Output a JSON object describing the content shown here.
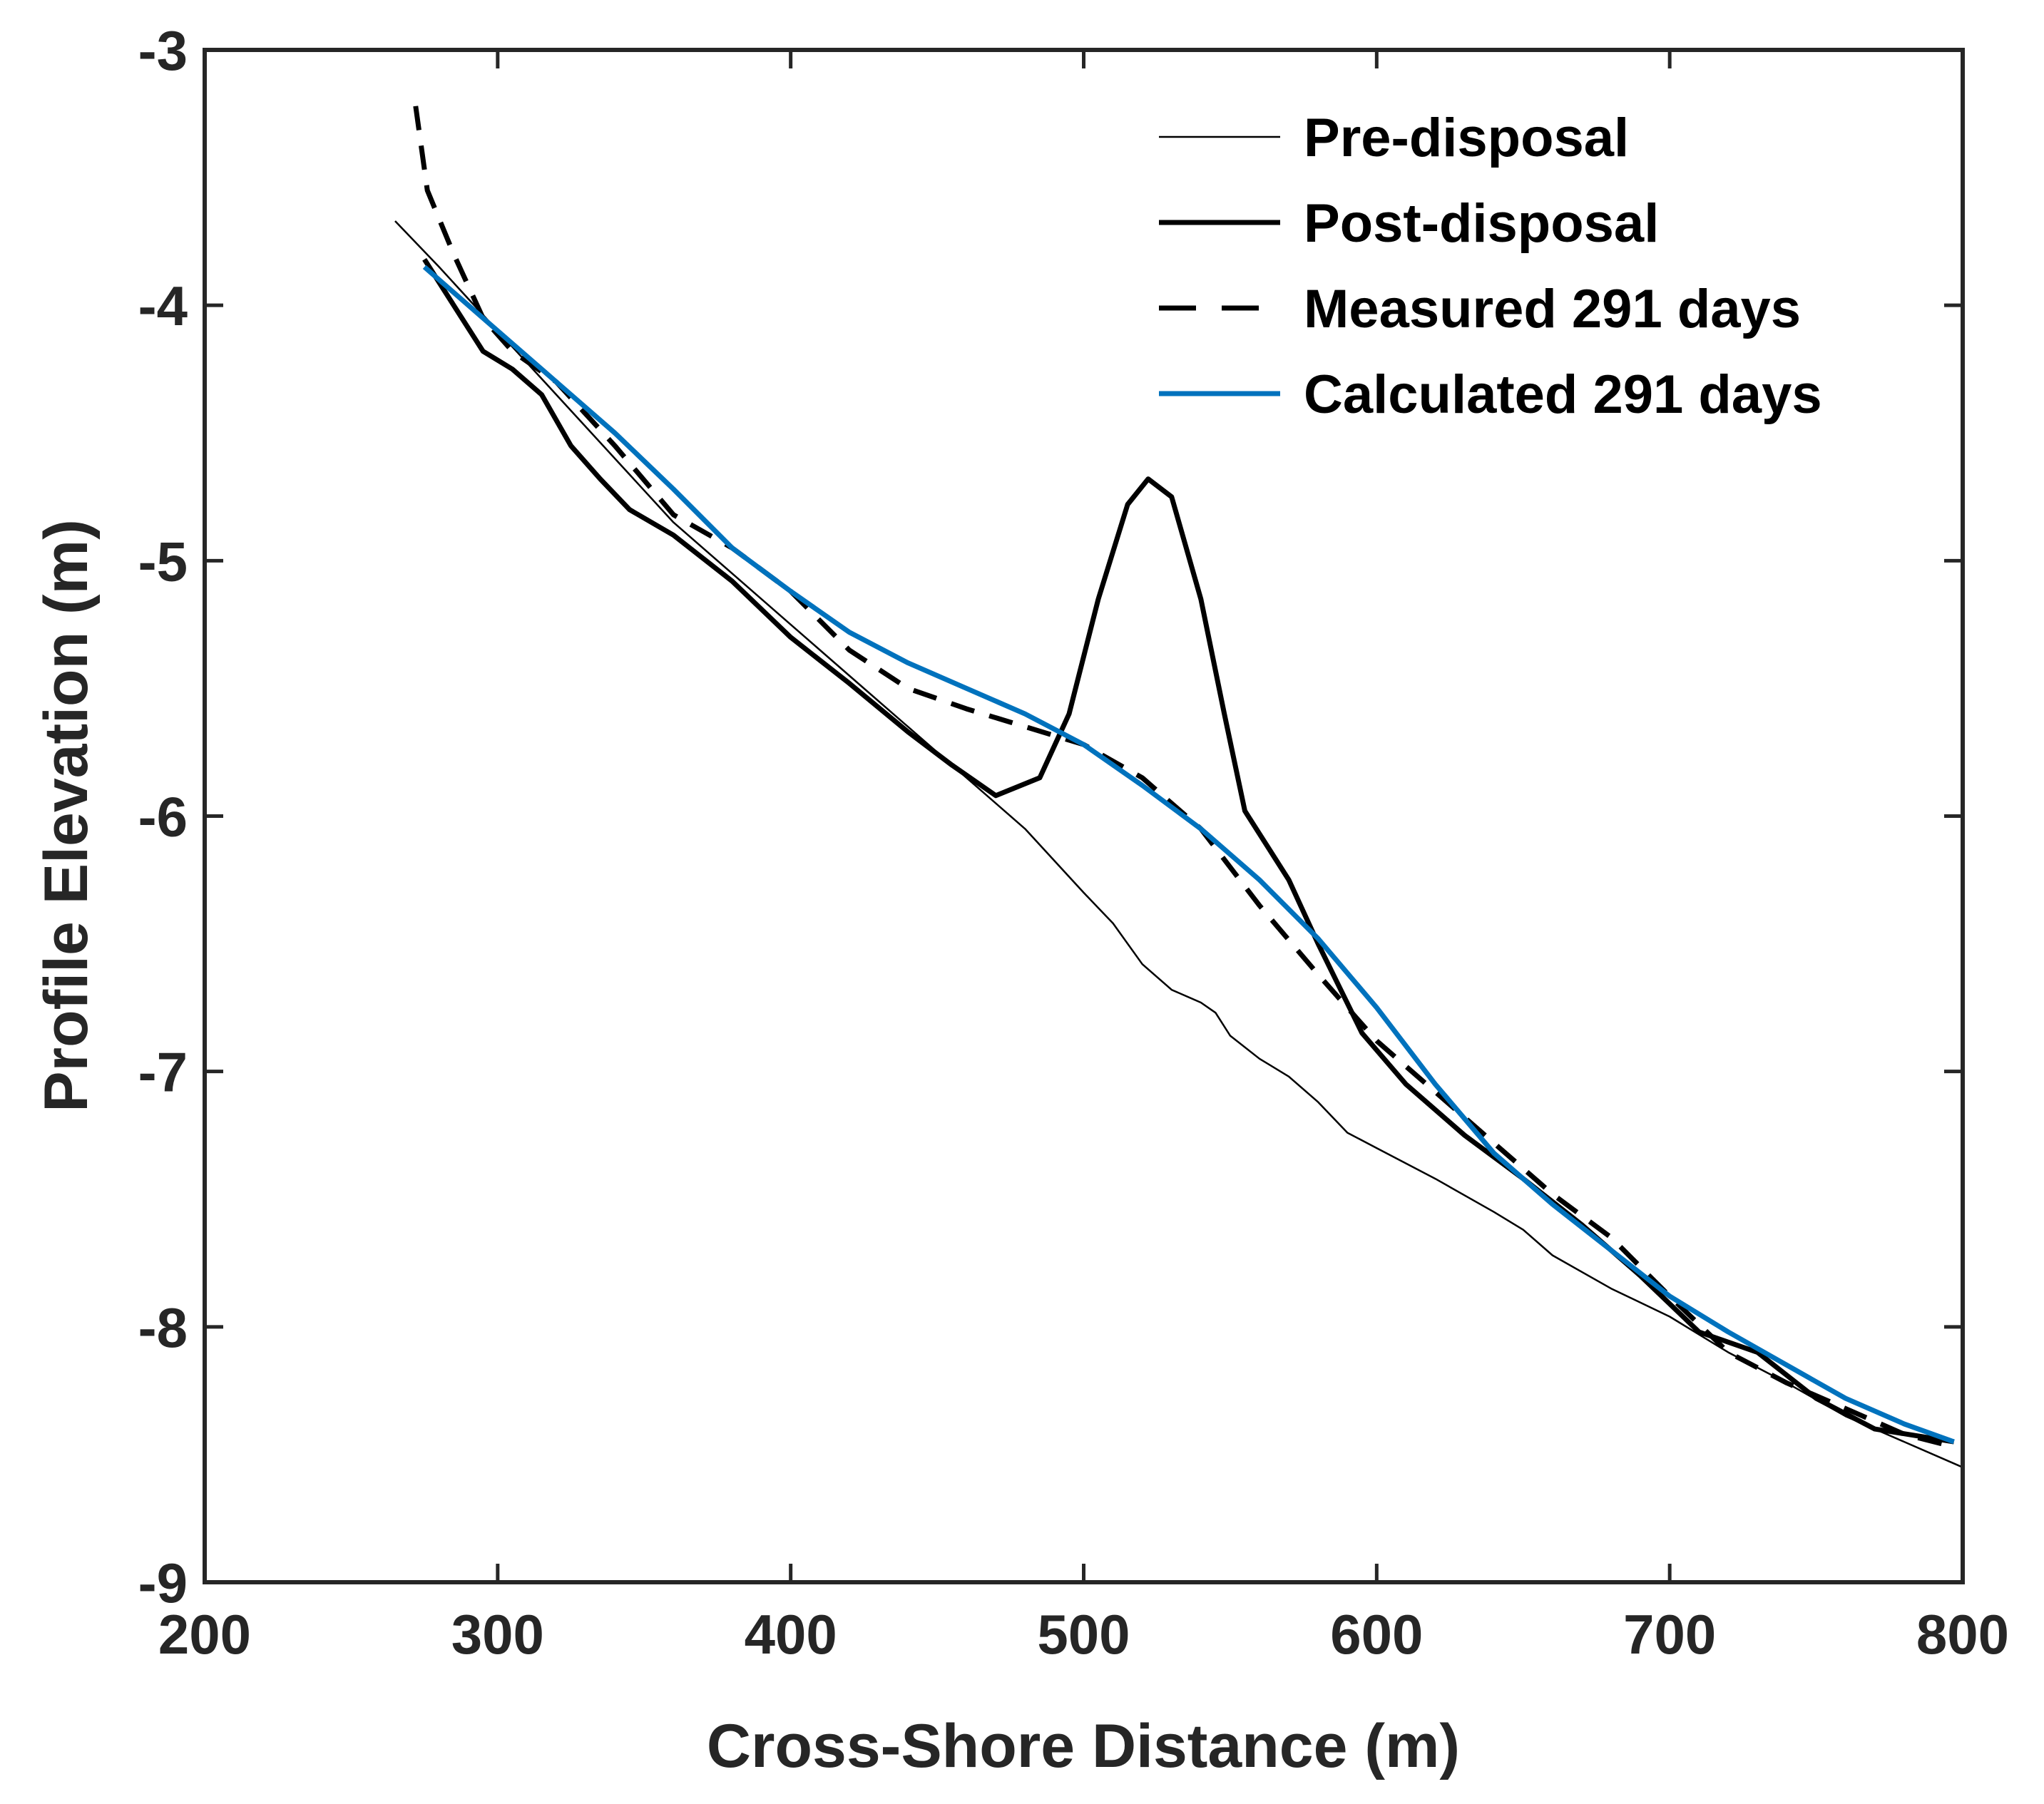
{
  "chart_data": {
    "type": "line",
    "title": "",
    "xlabel": "Cross-Shore Distance (m)",
    "ylabel": "Profile Elevation (m)",
    "xlim": [
      200,
      800
    ],
    "ylim": [
      -9,
      -3
    ],
    "xticks": [
      200,
      300,
      400,
      500,
      600,
      700,
      800
    ],
    "yticks": [
      -3,
      -4,
      -5,
      -6,
      -7,
      -8,
      -9
    ],
    "xtick_labels": [
      "200",
      "300",
      "400",
      "500",
      "600",
      "700",
      "800"
    ],
    "ytick_labels": [
      "-3",
      "-4",
      "-5",
      "-6",
      "-7",
      "-8",
      "-9"
    ],
    "grid": false,
    "legend_position": "top-right",
    "series": [
      {
        "name": "Pre-disposal",
        "color": "#000000",
        "style": "thin",
        "x": [
          265,
          280,
          300,
          320,
          340,
          360,
          380,
          400,
          420,
          440,
          460,
          480,
          500,
          510,
          520,
          530,
          540,
          545,
          550,
          560,
          570,
          580,
          590,
          600,
          620,
          640,
          650,
          660,
          680,
          700,
          720,
          740,
          760,
          780,
          800
        ],
        "y": [
          -3.67,
          -3.85,
          -4.1,
          -4.35,
          -4.6,
          -4.85,
          -5.05,
          -5.25,
          -5.45,
          -5.65,
          -5.85,
          -6.05,
          -6.3,
          -6.42,
          -6.58,
          -6.68,
          -6.73,
          -6.77,
          -6.86,
          -6.95,
          -7.02,
          -7.12,
          -7.24,
          -7.3,
          -7.42,
          -7.55,
          -7.62,
          -7.72,
          -7.85,
          -7.96,
          -8.1,
          -8.22,
          -8.35,
          -8.45,
          -8.55
        ]
      },
      {
        "name": "Post-disposal",
        "color": "#000000",
        "style": "thick",
        "x": [
          275,
          285,
          295,
          305,
          315,
          325,
          335,
          345,
          360,
          380,
          400,
          420,
          440,
          455,
          470,
          485,
          495,
          505,
          515,
          522,
          530,
          540,
          548,
          555,
          570,
          580,
          595,
          610,
          630,
          650,
          670,
          690,
          710,
          730,
          750,
          770,
          797
        ],
        "y": [
          -3.82,
          -4.0,
          -4.18,
          -4.25,
          -4.35,
          -4.55,
          -4.68,
          -4.8,
          -4.9,
          -5.08,
          -5.3,
          -5.48,
          -5.67,
          -5.8,
          -5.92,
          -5.85,
          -5.6,
          -5.15,
          -4.78,
          -4.68,
          -4.75,
          -5.15,
          -5.6,
          -5.98,
          -6.25,
          -6.5,
          -6.85,
          -7.05,
          -7.25,
          -7.42,
          -7.6,
          -7.8,
          -8.02,
          -8.1,
          -8.28,
          -8.4,
          -8.45
        ]
      },
      {
        "name": "Measured 291 days",
        "color": "#000000",
        "style": "dashed",
        "x": [
          272,
          276,
          285,
          295,
          305,
          320,
          340,
          360,
          380,
          400,
          420,
          440,
          460,
          480,
          500,
          520,
          540,
          560,
          580,
          600,
          620,
          640,
          660,
          680,
          700,
          720,
          740,
          760,
          780,
          797
        ],
        "y": [
          -3.22,
          -3.55,
          -3.8,
          -4.05,
          -4.18,
          -4.3,
          -4.55,
          -4.82,
          -4.95,
          -5.12,
          -5.35,
          -5.5,
          -5.58,
          -5.65,
          -5.72,
          -5.85,
          -6.05,
          -6.35,
          -6.62,
          -6.88,
          -7.08,
          -7.28,
          -7.48,
          -7.65,
          -7.88,
          -8.1,
          -8.22,
          -8.32,
          -8.42,
          -8.47
        ]
      },
      {
        "name": "Calculated 291 days",
        "color": "#0072BD",
        "style": "blue",
        "x": [
          275,
          300,
          320,
          340,
          360,
          380,
          400,
          420,
          440,
          460,
          480,
          500,
          520,
          540,
          560,
          580,
          600,
          620,
          640,
          660,
          680,
          700,
          720,
          740,
          760,
          780,
          797
        ],
        "y": [
          -3.85,
          -4.1,
          -4.3,
          -4.5,
          -4.72,
          -4.95,
          -5.12,
          -5.28,
          -5.4,
          -5.5,
          -5.6,
          -5.72,
          -5.88,
          -6.05,
          -6.25,
          -6.48,
          -6.75,
          -7.05,
          -7.32,
          -7.52,
          -7.7,
          -7.88,
          -8.02,
          -8.15,
          -8.28,
          -8.38,
          -8.45
        ]
      }
    ]
  }
}
